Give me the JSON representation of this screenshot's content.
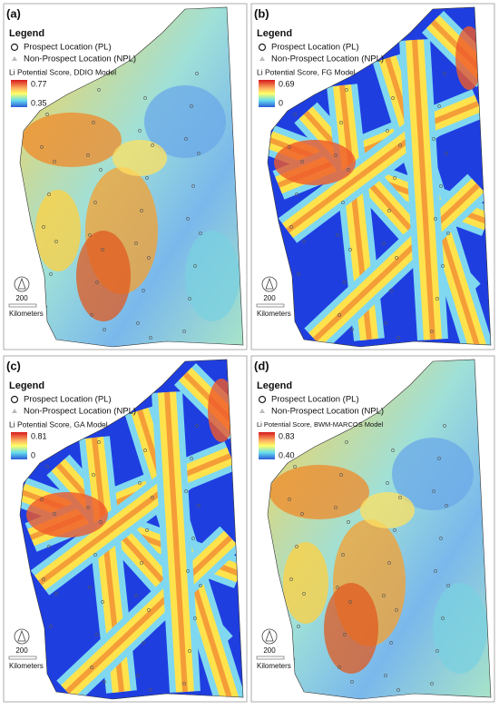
{
  "panels": [
    {
      "label": "(a)",
      "legend_title": "Legend",
      "prospect": "Prospect Location (PL)",
      "non_prospect": "Non-Prospect Location (NPL)",
      "score_title": "Li Potential Score, DDIO Model",
      "max": "0.77",
      "min": "0.35",
      "scale": "200",
      "scale_unit": "Kilometers"
    },
    {
      "label": "(b)",
      "legend_title": "Legend",
      "prospect": "Prospect Location (PL)",
      "non_prospect": "Non-Prospect Location (NPL)",
      "score_title": "Li Potential Score, FG Model",
      "max": "0.69",
      "min": "0",
      "scale": "200",
      "scale_unit": "Kilometers"
    },
    {
      "label": "(c)",
      "legend_title": "Legend",
      "prospect": "Prospect Location (PL)",
      "non_prospect": "Non-Prospect Location (NPL)",
      "score_title": "Li Potential Score, GA Model",
      "max": "0.81",
      "min": "0",
      "scale": "200",
      "scale_unit": "Kilometers"
    },
    {
      "label": "(d)",
      "legend_title": "Legend",
      "prospect": "Prospect Location (PL)",
      "non_prospect": "Non-Prospect Location (NPL)",
      "score_title": "Li Potential Score, BWM-MARCOS Model",
      "max": "0.83",
      "min": "0.40",
      "scale": "200",
      "scale_unit": "Kilometers"
    }
  ]
}
